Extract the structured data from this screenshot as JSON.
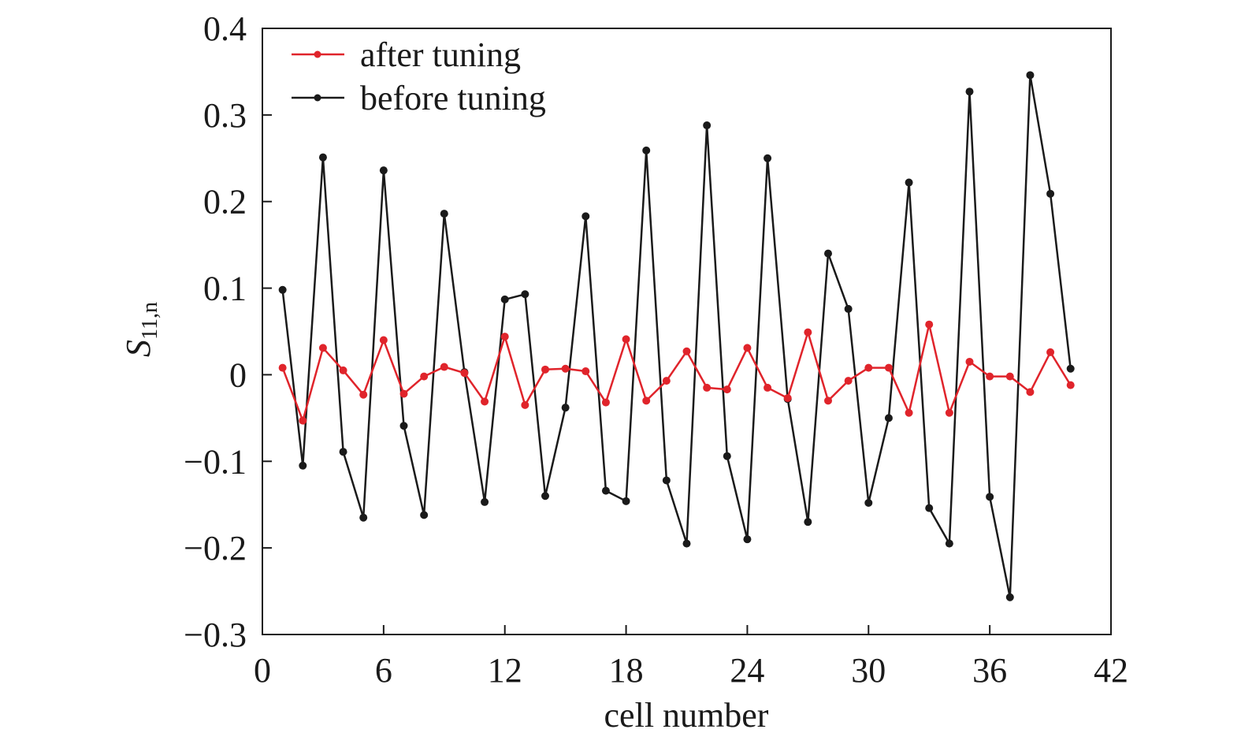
{
  "chart_data": {
    "type": "line",
    "xlabel": "cell number",
    "ylabel": "S",
    "ylabel_sub": "11,n",
    "xlim": [
      0,
      42
    ],
    "ylim": [
      -0.3,
      0.4
    ],
    "xticks": [
      0,
      6,
      12,
      18,
      24,
      30,
      36,
      42
    ],
    "yticks": [
      -0.3,
      -0.2,
      -0.1,
      0,
      0.1,
      0.2,
      0.3,
      0.4
    ],
    "xtick_labels": [
      "0",
      "6",
      "12",
      "18",
      "24",
      "30",
      "36",
      "42"
    ],
    "ytick_labels": [
      "−0.3",
      "−0.2",
      "−0.1",
      "0",
      "0.1",
      "0.2",
      "0.3",
      "0.4"
    ],
    "grid": false,
    "legend_position": "top-left",
    "x": [
      1,
      2,
      3,
      4,
      5,
      6,
      7,
      8,
      9,
      10,
      11,
      12,
      13,
      14,
      15,
      16,
      17,
      18,
      19,
      20,
      21,
      22,
      23,
      24,
      25,
      26,
      27,
      28,
      29,
      30,
      31,
      32,
      33,
      34,
      35,
      36,
      37,
      38,
      39,
      40
    ],
    "series": [
      {
        "name": "after tuning",
        "color": "#e0242b",
        "values": [
          0.008,
          -0.053,
          0.031,
          0.005,
          -0.023,
          0.04,
          -0.022,
          -0.002,
          0.009,
          0.002,
          -0.031,
          0.044,
          -0.035,
          0.006,
          0.007,
          0.004,
          -0.032,
          0.041,
          -0.03,
          -0.007,
          0.027,
          -0.015,
          -0.017,
          0.031,
          -0.015,
          -0.027,
          0.049,
          -0.03,
          -0.007,
          0.008,
          0.008,
          -0.044,
          0.058,
          -0.044,
          0.015,
          -0.002,
          -0.002,
          -0.02,
          0.026,
          -0.012
        ]
      },
      {
        "name": "before tuning",
        "color": "#1a1a1a",
        "values": [
          0.098,
          -0.105,
          0.251,
          -0.089,
          -0.165,
          0.236,
          -0.059,
          -0.162,
          0.186,
          0.003,
          -0.147,
          0.087,
          0.093,
          -0.14,
          -0.038,
          0.183,
          -0.134,
          -0.146,
          0.259,
          -0.122,
          -0.195,
          0.288,
          -0.094,
          -0.19,
          0.25,
          -0.028,
          -0.17,
          0.14,
          0.076,
          -0.148,
          -0.05,
          0.222,
          -0.154,
          -0.195,
          0.327,
          -0.141,
          -0.257,
          0.346,
          0.209,
          0.007
        ]
      }
    ]
  }
}
